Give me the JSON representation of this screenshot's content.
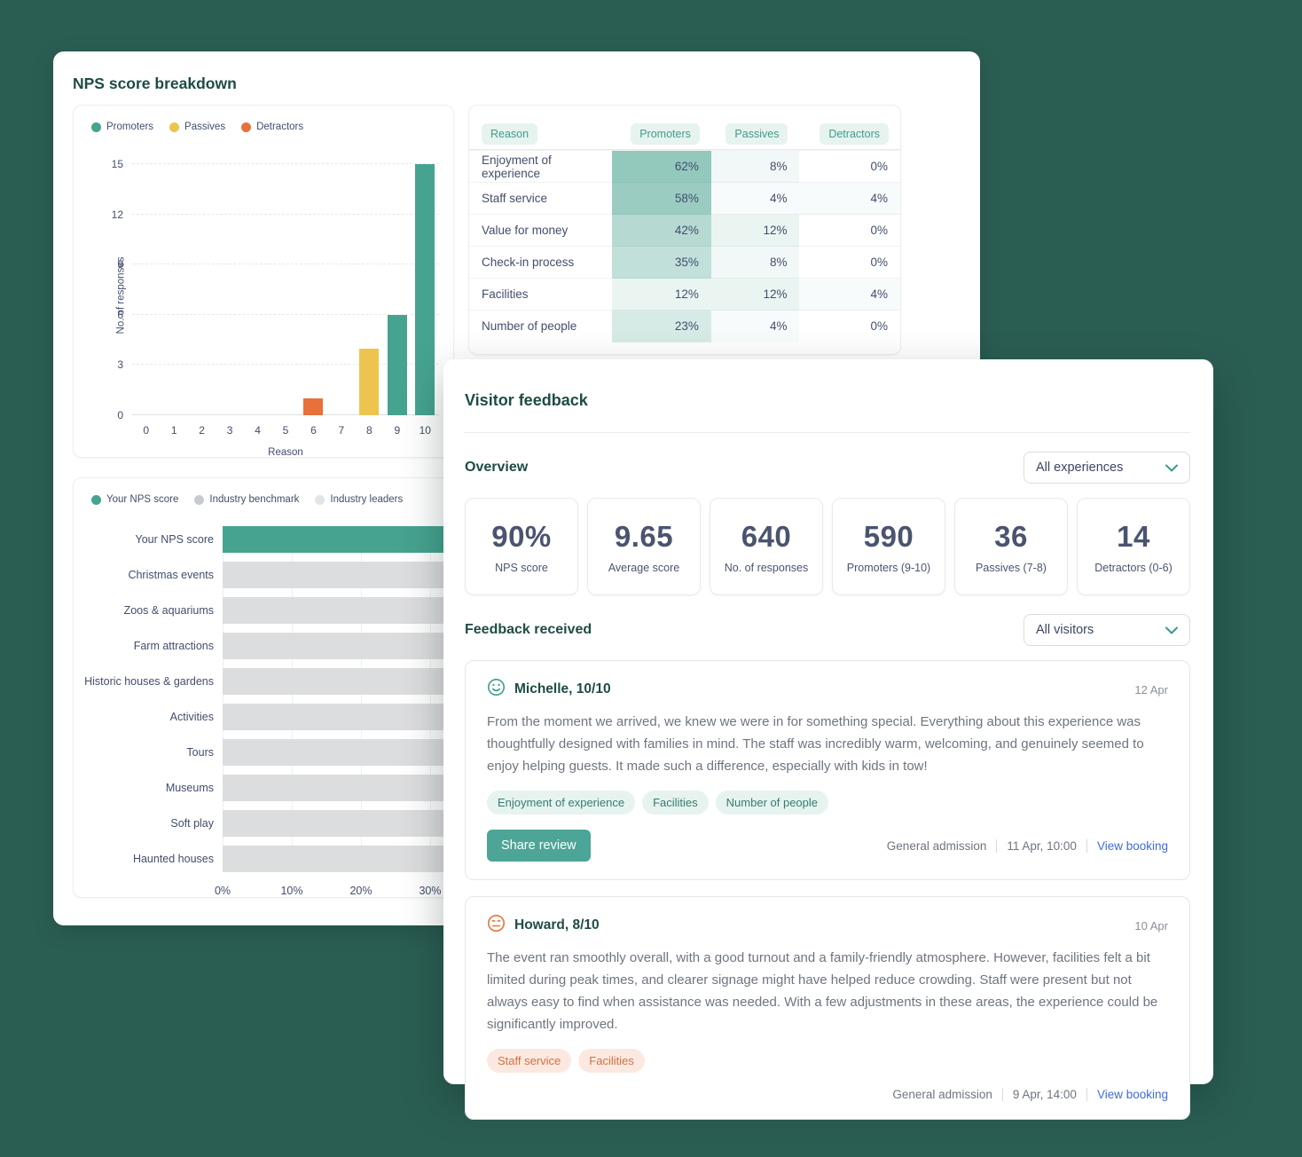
{
  "background_color": "#2B5E53",
  "accent_teal": "#46A38F",
  "accent_yellow": "#EDC44F",
  "accent_orange": "#E8713B",
  "link_blue": "#3E6BE0",
  "nps_card": {
    "title": "NPS score breakdown",
    "table": {
      "headers": [
        "Reason",
        "Promoters",
        "Passives",
        "Detractors"
      ],
      "rows": [
        {
          "reason": "Enjoyment of experience",
          "promoters": "62%",
          "passives": "8%",
          "detractors": "0%"
        },
        {
          "reason": "Staff service",
          "promoters": "58%",
          "passives": "4%",
          "detractors": "4%"
        },
        {
          "reason": "Value for money",
          "promoters": "42%",
          "passives": "12%",
          "detractors": "0%"
        },
        {
          "reason": "Check-in process",
          "promoters": "35%",
          "passives": "8%",
          "detractors": "0%"
        },
        {
          "reason": "Facilities",
          "promoters": "12%",
          "passives": "12%",
          "detractors": "4%"
        },
        {
          "reason": "Number of people",
          "promoters": "23%",
          "passives": "4%",
          "detractors": "0%"
        }
      ]
    }
  },
  "chart_data": [
    {
      "type": "bar",
      "title": "",
      "xlabel": "Reason",
      "ylabel": "No. of responses",
      "x_ticks": [
        "0",
        "1",
        "2",
        "3",
        "4",
        "5",
        "6",
        "7",
        "8",
        "9",
        "10"
      ],
      "y_ticks": [
        0,
        3,
        6,
        9,
        12,
        15
      ],
      "ylim": [
        0,
        15
      ],
      "legend": [
        {
          "label": "Promoters",
          "color": "#46A38F"
        },
        {
          "label": "Passives",
          "color": "#EDC44F"
        },
        {
          "label": "Detractors",
          "color": "#E8713B"
        }
      ],
      "bars": [
        {
          "x": 6,
          "value": 1,
          "series": "Detractors",
          "color": "#E8713B"
        },
        {
          "x": 8,
          "value": 4,
          "series": "Passives",
          "color": "#EDC44F"
        },
        {
          "x": 9,
          "value": 6,
          "series": "Promoters",
          "color": "#46A38F"
        },
        {
          "x": 10,
          "value": 15,
          "series": "Promoters",
          "color": "#46A38F"
        }
      ]
    },
    {
      "type": "bar-horizontal",
      "title": "",
      "x_ticks": [
        "0%",
        "10%",
        "20%",
        "30%"
      ],
      "x_tick_values": [
        0,
        10,
        20,
        30
      ],
      "legend": [
        {
          "label": "Your NPS score",
          "color": "#46A38F"
        },
        {
          "label": "Industry benchmark",
          "color": "#C7CBCF"
        },
        {
          "label": "Industry leaders",
          "color": "#E2E4E7"
        }
      ],
      "note": "all bars extend past 30% and are clipped by the overlapping card",
      "rows": [
        {
          "label": "Your NPS score",
          "series": "Your NPS score",
          "color": "#46A38F"
        },
        {
          "label": "Christmas events",
          "series": "Industry benchmark",
          "color": "#DCDDDF"
        },
        {
          "label": "Zoos & aquariums",
          "series": "Industry benchmark",
          "color": "#DCDDDF"
        },
        {
          "label": "Farm attractions",
          "series": "Industry benchmark",
          "color": "#DCDDDF"
        },
        {
          "label": "Historic houses & gardens",
          "series": "Industry benchmark",
          "color": "#DCDDDF"
        },
        {
          "label": "Activities",
          "series": "Industry benchmark",
          "color": "#DCDDDF"
        },
        {
          "label": "Tours",
          "series": "Industry benchmark",
          "color": "#DCDDDF"
        },
        {
          "label": "Museums",
          "series": "Industry benchmark",
          "color": "#DCDDDF"
        },
        {
          "label": "Soft play",
          "series": "Industry benchmark",
          "color": "#DCDDDF"
        },
        {
          "label": "Haunted houses",
          "series": "Industry benchmark",
          "color": "#DCDDDF"
        }
      ]
    }
  ],
  "feedback_card": {
    "title": "Visitor feedback",
    "overview": {
      "heading": "Overview",
      "filter_value": "All experiences",
      "stats": [
        {
          "value": "90%",
          "label": "NPS score"
        },
        {
          "value": "9.65",
          "label": "Average score"
        },
        {
          "value": "640",
          "label": "No. of responses"
        },
        {
          "value": "590",
          "label": "Promoters (9-10)"
        },
        {
          "value": "36",
          "label": "Passives (7-8)"
        },
        {
          "value": "14",
          "label": "Detractors (0-6)"
        }
      ]
    },
    "feedback": {
      "heading": "Feedback received",
      "filter_value": "All visitors",
      "items": [
        {
          "mood": "happy",
          "name": "Michelle, 10/10",
          "date": "12 Apr",
          "text": "From the moment we arrived, we knew we were in for something special. Everything about this experience was thoughtfully designed with families in mind. The staff was incredibly warm, welcoming, and genuinely seemed to enjoy helping guests. It made such a difference, especially with kids in tow!",
          "tags": [
            "Enjoyment of experience",
            "Facilities",
            "Number of people"
          ],
          "tag_style": "teal",
          "share_button": "Share review",
          "footer": {
            "experience": "General admission",
            "datetime": "11 Apr, 10:00",
            "link": "View booking"
          }
        },
        {
          "mood": "neutral",
          "name": "Howard, 8/10",
          "date": "10 Apr",
          "text": "The event ran smoothly overall, with a good turnout and a family-friendly atmosphere. However, facilities felt a bit limited during peak times, and clearer signage might have helped reduce crowding. Staff were present but not always easy to find when assistance was needed. With a few adjustments in these areas, the experience could be significantly improved.",
          "tags": [
            "Staff service",
            "Facilities"
          ],
          "tag_style": "orange",
          "share_button": null,
          "footer": {
            "experience": "General admission",
            "datetime": "9 Apr, 14:00",
            "link": "View booking"
          }
        }
      ]
    }
  }
}
